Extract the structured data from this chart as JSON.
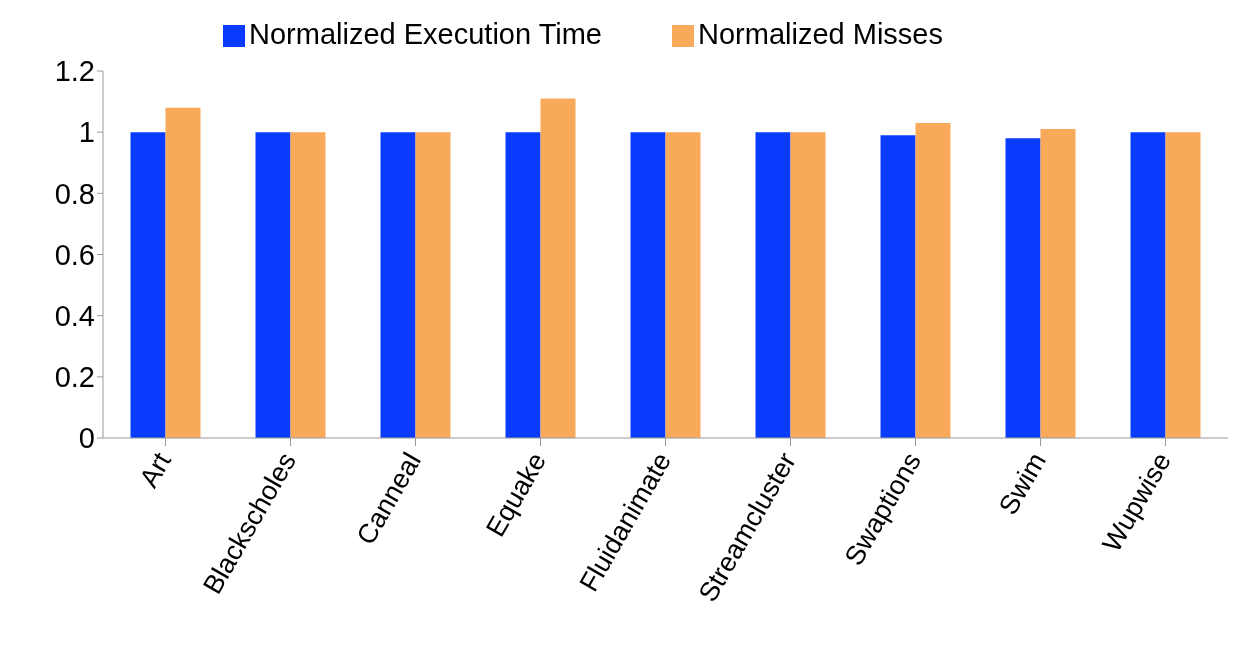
{
  "chart_data": {
    "type": "bar",
    "categories": [
      "Art",
      "Blackscholes",
      "Canneal",
      "Equake",
      "Fluidanimate",
      "Streamcluster",
      "Swaptions",
      "Swim",
      "Wupwise"
    ],
    "series": [
      {
        "name": "Normalized Execution Time",
        "color": "#0a3cff",
        "values": [
          1,
          1,
          1,
          1,
          1,
          1,
          0.99,
          0.98,
          1
        ]
      },
      {
        "name": "Normalized Misses",
        "color": "#f9a95a",
        "values": [
          1.08,
          1,
          1,
          1.11,
          1,
          1,
          1.03,
          1.01,
          1
        ]
      }
    ],
    "ylim": [
      0,
      1.2
    ],
    "yticks": [
      0,
      0.2,
      0.4,
      0.6,
      0.8,
      1,
      1.2
    ],
    "grid": false,
    "legend": "top"
  }
}
